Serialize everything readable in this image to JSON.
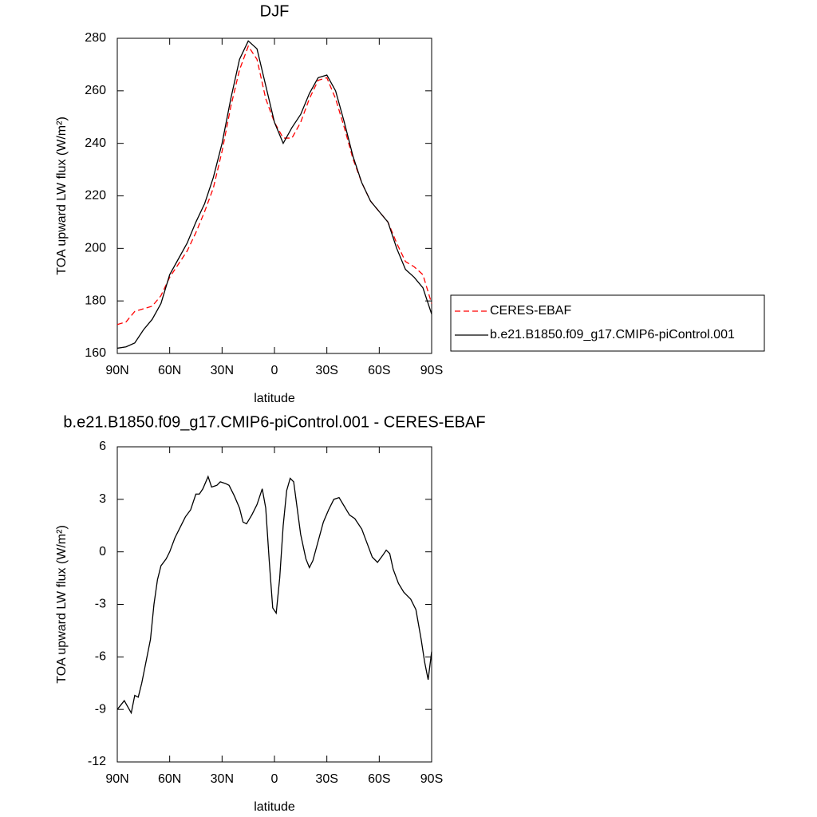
{
  "chart_data": [
    {
      "type": "line",
      "title": "DJF",
      "xlabel": "latitude",
      "ylabel": "TOA upward LW flux (W/m²)",
      "x": [
        90,
        85,
        80,
        75,
        70,
        65,
        60,
        55,
        50,
        45,
        40,
        35,
        30,
        25,
        20,
        15,
        10,
        5,
        0,
        -5,
        -10,
        -15,
        -20,
        -25,
        -30,
        -35,
        -40,
        -45,
        -50,
        -55,
        -60,
        -65,
        -70,
        -75,
        -80,
        -85,
        -90
      ],
      "series": [
        {
          "name": "CERES-EBAF",
          "color": "#ff0000",
          "dash": "dashed",
          "values": [
            171,
            172,
            176,
            177,
            178,
            182,
            189,
            194,
            199,
            206,
            214,
            223,
            237,
            254,
            268,
            277,
            272,
            257,
            248,
            242,
            242,
            248,
            257,
            264,
            265,
            257,
            246,
            234,
            225,
            218,
            214,
            210,
            202,
            195,
            193,
            190,
            179
          ]
        },
        {
          "name": "b.e21.B1850.f09_g17.CMIP6-piControl.001",
          "color": "#000000",
          "dash": "solid",
          "values": [
            162,
            162.5,
            164,
            169,
            173,
            179,
            190,
            196,
            202,
            210,
            217,
            227,
            240,
            257,
            272,
            279,
            276,
            262,
            248,
            240,
            246,
            251,
            259,
            265,
            266,
            260,
            248,
            235,
            225,
            218,
            214,
            210,
            200,
            192,
            189,
            185,
            175
          ]
        }
      ],
      "xlim": [
        90,
        -90
      ],
      "xticks": [
        {
          "value": 90,
          "label": "90N"
        },
        {
          "value": 60,
          "label": "60N"
        },
        {
          "value": 30,
          "label": "30N"
        },
        0,
        {
          "value": -30,
          "label": "30S"
        },
        {
          "value": -60,
          "label": "60S"
        },
        {
          "value": -90,
          "label": "90S"
        }
      ],
      "ylim": [
        160,
        280
      ],
      "yticks": [
        160,
        180,
        200,
        220,
        240,
        260,
        280
      ],
      "legend": "right"
    },
    {
      "type": "line",
      "title": "b.e21.B1850.f09_g17.CMIP6-piControl.001 - CERES-EBAF",
      "xlabel": "latitude",
      "ylabel": "TOA upward LW flux (W/m²)",
      "x": [
        90,
        86,
        82,
        80,
        78,
        76,
        73,
        71,
        69,
        67,
        65,
        62,
        60,
        57,
        53,
        51,
        48,
        45,
        43,
        41,
        38,
        36,
        33,
        31,
        28,
        26,
        23,
        20,
        18,
        16,
        13,
        10,
        7,
        5,
        3,
        1,
        -1,
        -3,
        -5,
        -7,
        -9,
        -11,
        -13,
        -15,
        -18,
        -20,
        -22,
        -25,
        -28,
        -31,
        -34,
        -37,
        -40,
        -43,
        -46,
        -50,
        -53,
        -56,
        -59,
        -62,
        -64,
        -66,
        -68,
        -71,
        -74,
        -76,
        -78,
        -81,
        -84,
        -86,
        -88,
        -90
      ],
      "values": [
        -9,
        -8.5,
        -9.2,
        -8.2,
        -8.3,
        -7.5,
        -6,
        -5,
        -3,
        -1.6,
        -0.8,
        -0.4,
        0,
        0.8,
        1.6,
        2.0,
        2.4,
        3.3,
        3.3,
        3.6,
        4.3,
        3.7,
        3.8,
        4.0,
        3.9,
        3.8,
        3.2,
        2.5,
        1.7,
        1.6,
        2.1,
        2.7,
        3.6,
        2.5,
        -0.5,
        -3.2,
        -3.5,
        -1.5,
        1.5,
        3.5,
        4.2,
        4.0,
        2.5,
        1.0,
        -0.4,
        -0.9,
        -0.5,
        0.6,
        1.7,
        2.4,
        3.0,
        3.1,
        2.6,
        2.1,
        1.9,
        1.3,
        0.5,
        -0.3,
        -0.6,
        -0.2,
        0.1,
        -0.1,
        -1.0,
        -1.8,
        -2.3,
        -2.5,
        -2.7,
        -3.3,
        -5.0,
        -6.3,
        -7.3,
        -5.7
      ],
      "color": "#000000",
      "xlim": [
        90,
        -90
      ],
      "xticks": [
        {
          "value": 90,
          "label": "90N"
        },
        {
          "value": 60,
          "label": "60N"
        },
        {
          "value": 30,
          "label": "30N"
        },
        0,
        {
          "value": -30,
          "label": "30S"
        },
        {
          "value": -60,
          "label": "60S"
        },
        {
          "value": -90,
          "label": "90S"
        }
      ],
      "ylim": [
        -12,
        6
      ],
      "yticks": [
        -12,
        -9,
        -6,
        -3,
        0,
        3,
        6
      ]
    }
  ]
}
